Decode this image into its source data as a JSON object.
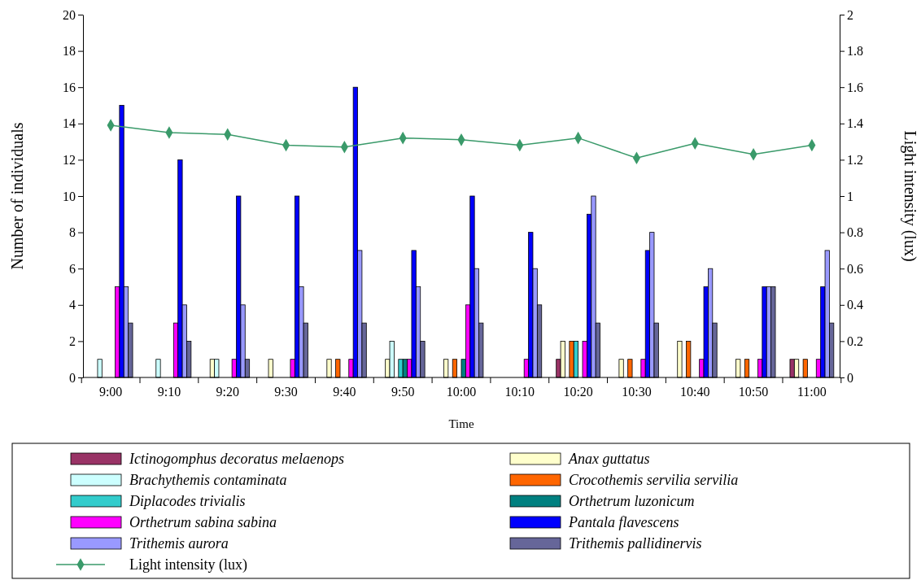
{
  "chart_data": {
    "type": "bar",
    "xlabel": "Time",
    "ylabel": "Number of individuals",
    "y2label": "Light intensity (lux)",
    "categories": [
      "9:00",
      "9:10",
      "9:20",
      "9:30",
      "9:40",
      "9:50",
      "10:00",
      "10:10",
      "10:20",
      "10:30",
      "10:40",
      "10:50",
      "11:00"
    ],
    "ylim": [
      0,
      20
    ],
    "yticks": [
      0,
      2,
      4,
      6,
      8,
      10,
      12,
      14,
      16,
      18,
      20
    ],
    "y2lim": [
      0,
      2
    ],
    "y2ticks": [
      0,
      0.2,
      0.4,
      0.6,
      0.8,
      1,
      1.2,
      1.4,
      1.6,
      1.8,
      2
    ],
    "grid": false,
    "legend": "bottom",
    "series": [
      {
        "name": "Ictinogomphus decoratus melaenops",
        "color": "#993366",
        "values": [
          0,
          0,
          0,
          0,
          0,
          0,
          0,
          0,
          1,
          0,
          0,
          0,
          1
        ]
      },
      {
        "name": "Anax guttatus",
        "color": "#ffffcc",
        "values": [
          0,
          0,
          1,
          1,
          1,
          1,
          1,
          0,
          2,
          1,
          2,
          1,
          1
        ]
      },
      {
        "name": "Brachythemis contaminata",
        "color": "#ccffff",
        "values": [
          1,
          1,
          1,
          0,
          0,
          2,
          0,
          0,
          0,
          0,
          0,
          0,
          0
        ]
      },
      {
        "name": "Crocothemis servilia servilia",
        "color": "#ff6600",
        "values": [
          0,
          0,
          0,
          0,
          1,
          0,
          1,
          0,
          2,
          1,
          2,
          1,
          1
        ]
      },
      {
        "name": "Diplacodes trivialis",
        "color": "#33cccc",
        "values": [
          0,
          0,
          0,
          0,
          0,
          1,
          0,
          0,
          2,
          0,
          0,
          0,
          0
        ]
      },
      {
        "name": "Orthetrum luzonicum",
        "color": "#008080",
        "values": [
          0,
          0,
          0,
          0,
          0,
          1,
          1,
          0,
          0,
          0,
          0,
          0,
          0
        ]
      },
      {
        "name": "Orthetrum sabina sabina",
        "color": "#ff00ff",
        "values": [
          5,
          3,
          1,
          1,
          1,
          1,
          4,
          1,
          2,
          1,
          1,
          1,
          1
        ]
      },
      {
        "name": "Pantala flavescens",
        "color": "#0000ff",
        "values": [
          15,
          12,
          10,
          10,
          16,
          7,
          10,
          8,
          9,
          7,
          5,
          5,
          5
        ]
      },
      {
        "name": "Trithemis aurora",
        "color": "#9999ff",
        "values": [
          5,
          4,
          4,
          5,
          7,
          5,
          6,
          6,
          10,
          8,
          6,
          5,
          7
        ]
      },
      {
        "name": "Trithemis pallidinervis",
        "color": "#666699",
        "values": [
          3,
          2,
          1,
          3,
          3,
          2,
          3,
          4,
          3,
          3,
          3,
          5,
          3
        ]
      },
      {
        "name": "Light intensity (lux)",
        "type": "line",
        "axis": "y2",
        "color": "#3a9a6a",
        "marker": "diamond",
        "line_style": "solid",
        "values": [
          1.39,
          1.35,
          1.34,
          1.28,
          1.27,
          1.32,
          1.31,
          1.28,
          1.32,
          1.21,
          1.29,
          1.23,
          1.28
        ]
      }
    ]
  }
}
